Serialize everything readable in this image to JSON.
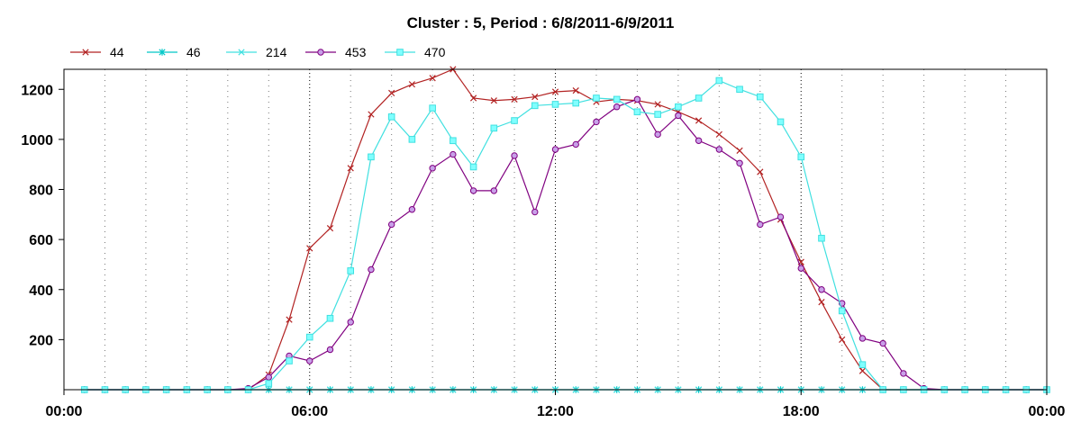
{
  "chart_data": {
    "type": "line",
    "title": "Cluster : 5, Period : 6/8/2011-6/9/2011",
    "xlabel": "",
    "ylabel": "",
    "x_range_hours": [
      0,
      24
    ],
    "ylim": [
      0,
      1280
    ],
    "x_ticks": [
      {
        "label": "00:00",
        "hour": 0
      },
      {
        "label": "06:00",
        "hour": 6
      },
      {
        "label": "12:00",
        "hour": 12
      },
      {
        "label": "18:00",
        "hour": 18
      },
      {
        "label": "00:00",
        "hour": 24
      }
    ],
    "y_ticks": [
      200,
      400,
      600,
      800,
      1000,
      1200
    ],
    "grid": true,
    "legend_position": "top-left",
    "series": [
      {
        "name": "44",
        "color": "#b22222",
        "marker": "x",
        "points": [
          [
            0.5,
            0
          ],
          [
            1,
            0
          ],
          [
            1.5,
            0
          ],
          [
            2,
            0
          ],
          [
            2.5,
            0
          ],
          [
            3,
            0
          ],
          [
            3.5,
            0
          ],
          [
            4,
            0
          ],
          [
            4.5,
            0
          ],
          [
            5,
            60
          ],
          [
            5.5,
            280
          ],
          [
            6,
            565
          ],
          [
            6.5,
            645
          ],
          [
            7,
            885
          ],
          [
            7.5,
            1100
          ],
          [
            8,
            1185
          ],
          [
            8.5,
            1220
          ],
          [
            9,
            1245
          ],
          [
            9.5,
            1280
          ],
          [
            10,
            1165
          ],
          [
            10.5,
            1155
          ],
          [
            11,
            1160
          ],
          [
            11.5,
            1170
          ],
          [
            12,
            1190
          ],
          [
            12.5,
            1195
          ],
          [
            13,
            1150
          ],
          [
            13.5,
            1160
          ],
          [
            14,
            1155
          ],
          [
            14.5,
            1140
          ],
          [
            15,
            1110
          ],
          [
            15.5,
            1075
          ],
          [
            16,
            1020
          ],
          [
            16.5,
            955
          ],
          [
            17,
            870
          ],
          [
            17.5,
            680
          ],
          [
            18,
            510
          ],
          [
            18.5,
            350
          ],
          [
            19,
            200
          ],
          [
            19.5,
            75
          ],
          [
            20,
            0
          ],
          [
            20.5,
            0
          ],
          [
            21,
            0
          ],
          [
            21.5,
            0
          ],
          [
            22,
            0
          ],
          [
            22.5,
            0
          ],
          [
            23,
            0
          ],
          [
            23.5,
            0
          ],
          [
            24,
            0
          ]
        ]
      },
      {
        "name": "46",
        "color": "#00c8c8",
        "marker": "asterisk",
        "points": [
          [
            0.5,
            0
          ],
          [
            1,
            0
          ],
          [
            1.5,
            0
          ],
          [
            2,
            0
          ],
          [
            2.5,
            0
          ],
          [
            3,
            0
          ],
          [
            3.5,
            0
          ],
          [
            4,
            0
          ],
          [
            4.5,
            0
          ],
          [
            5,
            0
          ],
          [
            5.5,
            0
          ],
          [
            6,
            0
          ],
          [
            6.5,
            0
          ],
          [
            7,
            0
          ],
          [
            7.5,
            0
          ],
          [
            8,
            0
          ],
          [
            8.5,
            0
          ],
          [
            9,
            0
          ],
          [
            9.5,
            0
          ],
          [
            10,
            0
          ],
          [
            10.5,
            0
          ],
          [
            11,
            0
          ],
          [
            11.5,
            0
          ],
          [
            12,
            0
          ],
          [
            12.5,
            0
          ],
          [
            13,
            0
          ],
          [
            13.5,
            0
          ],
          [
            14,
            0
          ],
          [
            14.5,
            0
          ],
          [
            15,
            0
          ],
          [
            15.5,
            0
          ],
          [
            16,
            0
          ],
          [
            16.5,
            0
          ],
          [
            17,
            0
          ],
          [
            17.5,
            0
          ],
          [
            18,
            0
          ],
          [
            18.5,
            0
          ],
          [
            19,
            0
          ],
          [
            19.5,
            0
          ],
          [
            20,
            0
          ],
          [
            20.5,
            0
          ],
          [
            21,
            0
          ],
          [
            21.5,
            0
          ],
          [
            22,
            0
          ],
          [
            22.5,
            0
          ],
          [
            23,
            0
          ],
          [
            23.5,
            0
          ],
          [
            24,
            0
          ]
        ]
      },
      {
        "name": "214",
        "color": "#40e0e0",
        "marker": "x",
        "points": [
          [
            0.5,
            0
          ],
          [
            1,
            0
          ],
          [
            1.5,
            0
          ],
          [
            2,
            0
          ],
          [
            2.5,
            0
          ],
          [
            3,
            0
          ],
          [
            3.5,
            0
          ],
          [
            4,
            0
          ],
          [
            4.5,
            0
          ],
          [
            5,
            0
          ],
          [
            5.5,
            0
          ],
          [
            6,
            0
          ],
          [
            6.5,
            0
          ],
          [
            7,
            0
          ],
          [
            7.5,
            0
          ],
          [
            8,
            0
          ],
          [
            8.5,
            0
          ],
          [
            9,
            0
          ],
          [
            9.5,
            0
          ],
          [
            10,
            0
          ],
          [
            10.5,
            0
          ],
          [
            11,
            0
          ],
          [
            11.5,
            0
          ],
          [
            12,
            0
          ],
          [
            12.5,
            0
          ],
          [
            13,
            0
          ],
          [
            13.5,
            0
          ],
          [
            14,
            0
          ],
          [
            14.5,
            0
          ],
          [
            15,
            0
          ],
          [
            15.5,
            0
          ],
          [
            16,
            0
          ],
          [
            16.5,
            0
          ],
          [
            17,
            0
          ],
          [
            17.5,
            0
          ],
          [
            18,
            0
          ],
          [
            18.5,
            0
          ],
          [
            19,
            0
          ],
          [
            19.5,
            0
          ],
          [
            20,
            0
          ],
          [
            20.5,
            0
          ],
          [
            21,
            0
          ],
          [
            21.5,
            0
          ],
          [
            22,
            0
          ],
          [
            22.5,
            0
          ],
          [
            23,
            0
          ],
          [
            23.5,
            0
          ],
          [
            24,
            0
          ]
        ]
      },
      {
        "name": "453",
        "color": "#800080",
        "marker": "circle",
        "points": [
          [
            0.5,
            0
          ],
          [
            1,
            0
          ],
          [
            1.5,
            0
          ],
          [
            2,
            0
          ],
          [
            2.5,
            0
          ],
          [
            3,
            0
          ],
          [
            3.5,
            0
          ],
          [
            4,
            0
          ],
          [
            4.5,
            5
          ],
          [
            5,
            50
          ],
          [
            5.5,
            135
          ],
          [
            6,
            115
          ],
          [
            6.5,
            160
          ],
          [
            7,
            270
          ],
          [
            7.5,
            480
          ],
          [
            8,
            660
          ],
          [
            8.5,
            720
          ],
          [
            9,
            885
          ],
          [
            9.5,
            940
          ],
          [
            10,
            795
          ],
          [
            10.5,
            795
          ],
          [
            11,
            935
          ],
          [
            11.5,
            710
          ],
          [
            12,
            960
          ],
          [
            12.5,
            980
          ],
          [
            13,
            1070
          ],
          [
            13.5,
            1130
          ],
          [
            14,
            1160
          ],
          [
            14.5,
            1020
          ],
          [
            15,
            1095
          ],
          [
            15.5,
            995
          ],
          [
            16,
            960
          ],
          [
            16.5,
            905
          ],
          [
            17,
            660
          ],
          [
            17.5,
            690
          ],
          [
            18,
            485
          ],
          [
            18.5,
            400
          ],
          [
            19,
            345
          ],
          [
            19.5,
            205
          ],
          [
            20,
            185
          ],
          [
            20.5,
            65
          ],
          [
            21,
            5
          ],
          [
            21.5,
            0
          ],
          [
            22,
            0
          ],
          [
            22.5,
            0
          ],
          [
            23,
            0
          ],
          [
            23.5,
            0
          ],
          [
            24,
            0
          ]
        ]
      },
      {
        "name": "470",
        "color": "#40e0e0",
        "marker": "square",
        "points": [
          [
            0.5,
            0
          ],
          [
            1,
            0
          ],
          [
            1.5,
            0
          ],
          [
            2,
            0
          ],
          [
            2.5,
            0
          ],
          [
            3,
            0
          ],
          [
            3.5,
            0
          ],
          [
            4,
            0
          ],
          [
            4.5,
            0
          ],
          [
            5,
            25
          ],
          [
            5.5,
            115
          ],
          [
            6,
            210
          ],
          [
            6.5,
            285
          ],
          [
            7,
            475
          ],
          [
            7.5,
            930
          ],
          [
            8,
            1090
          ],
          [
            8.5,
            1000
          ],
          [
            9,
            1125
          ],
          [
            9.5,
            995
          ],
          [
            10,
            890
          ],
          [
            10.5,
            1045
          ],
          [
            11,
            1075
          ],
          [
            11.5,
            1135
          ],
          [
            12,
            1140
          ],
          [
            12.5,
            1145
          ],
          [
            13,
            1165
          ],
          [
            13.5,
            1160
          ],
          [
            14,
            1110
          ],
          [
            14.5,
            1100
          ],
          [
            15,
            1130
          ],
          [
            15.5,
            1165
          ],
          [
            16,
            1235
          ],
          [
            16.5,
            1200
          ],
          [
            17,
            1170
          ],
          [
            17.5,
            1070
          ],
          [
            18,
            930
          ],
          [
            18.5,
            605
          ],
          [
            19,
            315
          ],
          [
            19.5,
            100
          ],
          [
            20,
            0
          ],
          [
            20.5,
            0
          ],
          [
            21,
            0
          ],
          [
            21.5,
            0
          ],
          [
            22,
            0
          ],
          [
            22.5,
            0
          ],
          [
            23,
            0
          ],
          [
            23.5,
            0
          ],
          [
            24,
            0
          ]
        ]
      }
    ]
  }
}
